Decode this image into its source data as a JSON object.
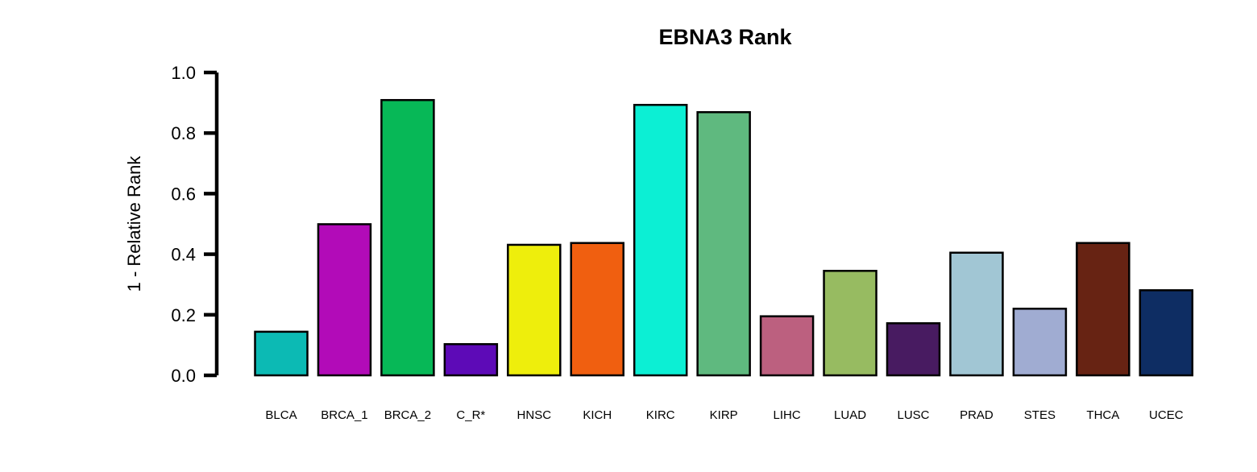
{
  "chart_data": {
    "type": "bar",
    "title": "EBNA3 Rank",
    "xlabel": "",
    "ylabel": "1 - Relative Rank",
    "ylim": [
      0,
      1
    ],
    "yticks": [
      "0.0",
      "0.2",
      "0.4",
      "0.6",
      "0.8",
      "1.0"
    ],
    "grid": false,
    "categories": [
      "BLCA",
      "BRCA_1",
      "BRCA_2",
      "C_R*",
      "HNSC",
      "KICH",
      "KIRC",
      "KIRP",
      "LIHC",
      "LUAD",
      "LUSC",
      "PRAD",
      "STES",
      "THCA",
      "UCEC"
    ],
    "values": [
      0.144,
      0.499,
      0.909,
      0.103,
      0.431,
      0.437,
      0.893,
      0.869,
      0.195,
      0.345,
      0.172,
      0.405,
      0.22,
      0.437,
      0.281
    ],
    "colors": [
      "#0cbab4",
      "#b20bb8",
      "#07b857",
      "#5d0ab7",
      "#eeee0c",
      "#f05f10",
      "#0cefd4",
      "#5fb97f",
      "#bc607f",
      "#97bb61",
      "#481b61",
      "#a1c6d4",
      "#a0acd2",
      "#672313",
      "#0e2d63"
    ]
  }
}
